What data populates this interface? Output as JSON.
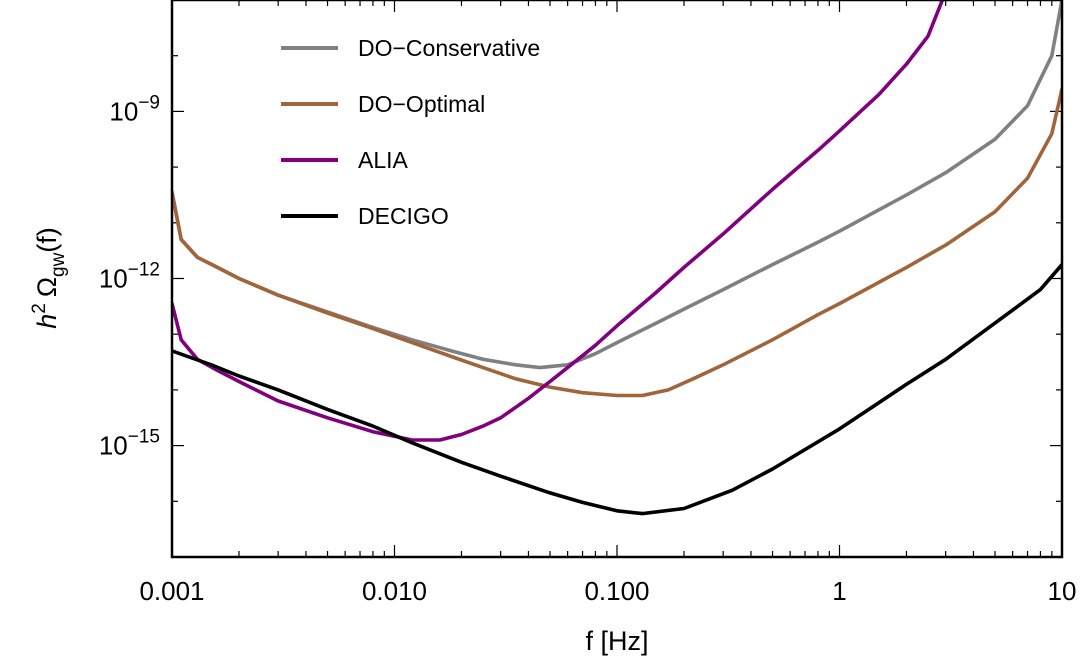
{
  "chart_data": {
    "type": "line",
    "xlabel": "f [Hz]",
    "ylabel": {
      "base": "h",
      "sup": "2",
      "omega": "Ω",
      "sub": "gw",
      "arg": "(f)"
    },
    "xscale": "log",
    "yscale": "log",
    "xlim": [
      0.001,
      10
    ],
    "ylim_log10": [
      -17.0,
      -7.0
    ],
    "x_ticks": [
      {
        "value": 0.001,
        "label": "0.001"
      },
      {
        "value": 0.01,
        "label": "0.010"
      },
      {
        "value": 0.1,
        "label": "0.100"
      },
      {
        "value": 1,
        "label": "1"
      },
      {
        "value": 10,
        "label": "10"
      }
    ],
    "y_ticks": [
      {
        "value_log10": -9,
        "mantissa": "10",
        "exponent": "−9"
      },
      {
        "value_log10": -12,
        "mantissa": "10",
        "exponent": "−12"
      },
      {
        "value_log10": -15,
        "mantissa": "10",
        "exponent": "−15"
      }
    ],
    "grid": false,
    "legend_position": "top-left",
    "series": [
      {
        "name": "DO−Conservative",
        "color": "#808080",
        "x": [
          0.001,
          0.0011,
          0.0013,
          0.0016,
          0.002,
          0.003,
          0.005,
          0.008,
          0.012,
          0.018,
          0.025,
          0.035,
          0.045,
          0.06,
          0.08,
          0.1,
          0.15,
          0.2,
          0.3,
          0.5,
          0.8,
          1,
          2,
          3,
          5,
          7,
          9,
          10
        ],
        "y_log10": [
          -10.45,
          -11.3,
          -11.62,
          -11.8,
          -12.0,
          -12.3,
          -12.6,
          -12.88,
          -13.1,
          -13.3,
          -13.45,
          -13.55,
          -13.6,
          -13.55,
          -13.35,
          -13.15,
          -12.8,
          -12.55,
          -12.2,
          -11.75,
          -11.35,
          -11.15,
          -10.5,
          -10.1,
          -9.5,
          -8.9,
          -8.0,
          -7.0
        ]
      },
      {
        "name": "DO−Optimal",
        "color": "#A0653A",
        "x": [
          0.001,
          0.0011,
          0.0013,
          0.0016,
          0.002,
          0.003,
          0.005,
          0.008,
          0.012,
          0.018,
          0.025,
          0.035,
          0.05,
          0.07,
          0.1,
          0.13,
          0.17,
          0.22,
          0.3,
          0.5,
          0.8,
          1,
          2,
          3,
          5,
          7,
          9,
          10
        ],
        "y_log10": [
          -10.45,
          -11.3,
          -11.62,
          -11.8,
          -12.0,
          -12.3,
          -12.62,
          -12.9,
          -13.15,
          -13.4,
          -13.6,
          -13.8,
          -13.95,
          -14.05,
          -14.1,
          -14.1,
          -14.0,
          -13.8,
          -13.55,
          -13.1,
          -12.65,
          -12.45,
          -11.8,
          -11.4,
          -10.8,
          -10.2,
          -9.4,
          -8.6
        ]
      },
      {
        "name": "ALIA",
        "color": "#800080",
        "x": [
          0.001,
          0.0011,
          0.0013,
          0.0016,
          0.002,
          0.003,
          0.005,
          0.008,
          0.012,
          0.016,
          0.02,
          0.025,
          0.03,
          0.04,
          0.05,
          0.06,
          0.08,
          0.1,
          0.15,
          0.2,
          0.3,
          0.5,
          0.8,
          1,
          1.5,
          2,
          2.5,
          2.9
        ],
        "y_log10": [
          -12.45,
          -13.1,
          -13.45,
          -13.65,
          -13.85,
          -14.2,
          -14.5,
          -14.75,
          -14.9,
          -14.9,
          -14.8,
          -14.65,
          -14.5,
          -14.15,
          -13.85,
          -13.6,
          -13.2,
          -12.85,
          -12.25,
          -11.8,
          -11.2,
          -10.4,
          -9.7,
          -9.35,
          -8.7,
          -8.15,
          -7.65,
          -7.0
        ]
      },
      {
        "name": "DECIGO",
        "color": "#000000",
        "x": [
          0.001,
          0.0015,
          0.002,
          0.003,
          0.005,
          0.008,
          0.012,
          0.02,
          0.03,
          0.05,
          0.07,
          0.1,
          0.13,
          0.2,
          0.33,
          0.5,
          1,
          2,
          3,
          5,
          8,
          10
        ],
        "y_log10": [
          -13.3,
          -13.55,
          -13.75,
          -14.0,
          -14.35,
          -14.65,
          -14.95,
          -15.3,
          -15.55,
          -15.85,
          -16.02,
          -16.17,
          -16.22,
          -16.13,
          -15.8,
          -15.42,
          -14.7,
          -13.9,
          -13.45,
          -12.8,
          -12.2,
          -11.75
        ]
      }
    ]
  }
}
